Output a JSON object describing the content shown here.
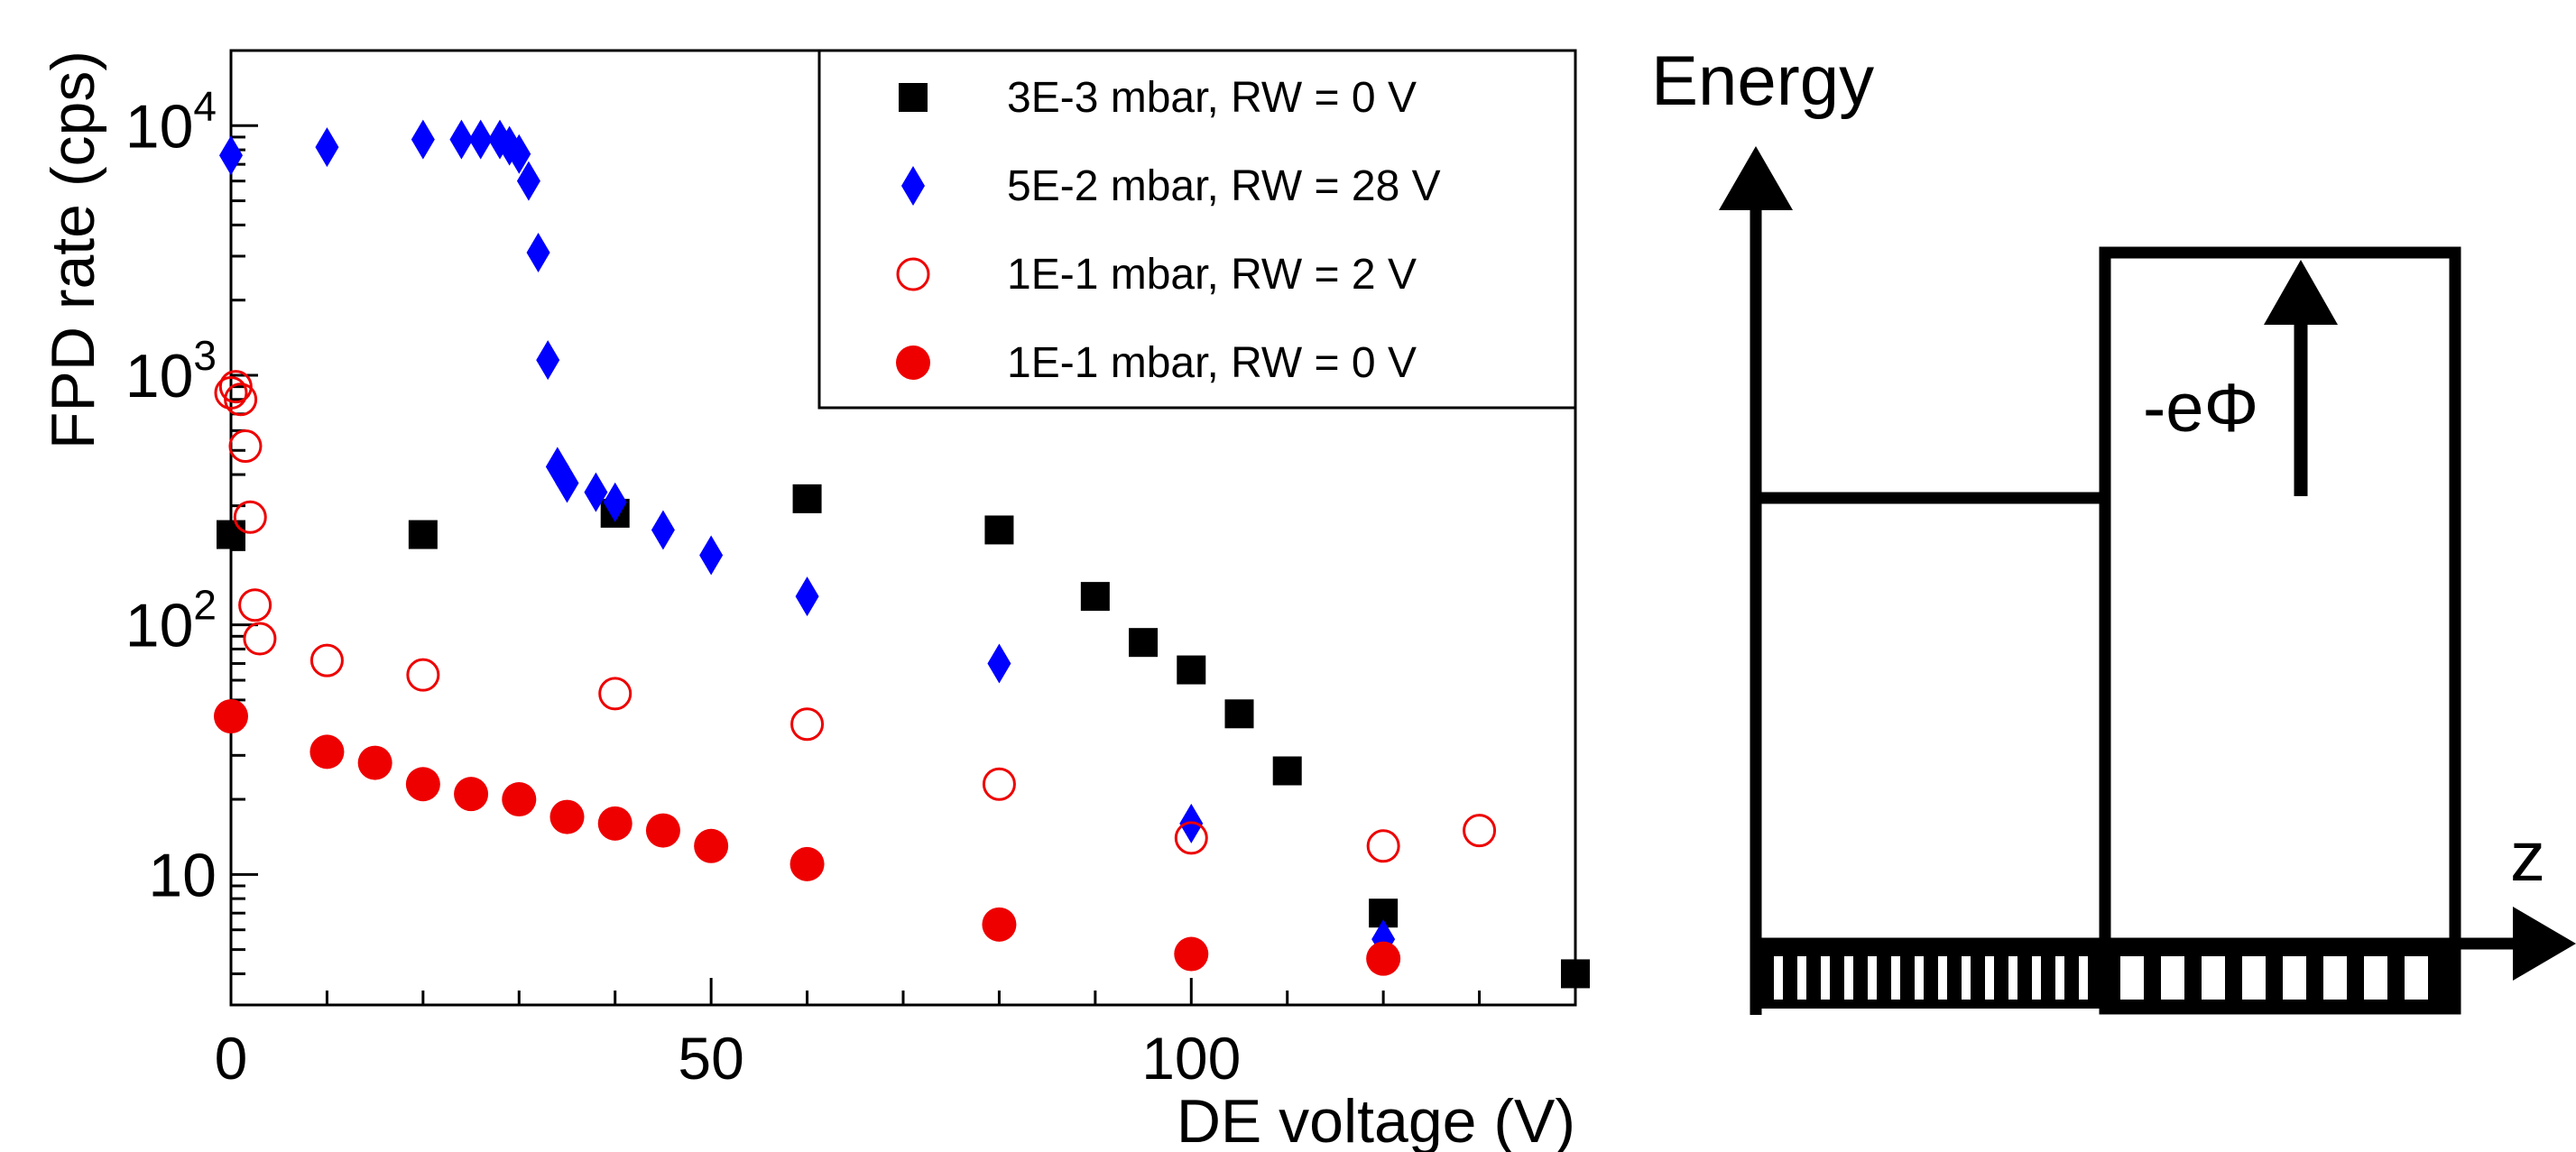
{
  "chart_data": {
    "type": "scatter",
    "xlabel": "DE voltage (V)",
    "ylabel": "FPD rate (cps)",
    "xlim": [
      0,
      140
    ],
    "ylim": [
      3,
      20000
    ],
    "y_scale": "log",
    "grid": false,
    "legend_position": "top-right",
    "x_ticks": [
      {
        "value": 0,
        "label": "0"
      },
      {
        "value": 50,
        "label": "50"
      },
      {
        "value": 100,
        "label": "100"
      }
    ],
    "y_ticks": [
      {
        "value": 10,
        "base": "10",
        "exp": ""
      },
      {
        "value": 100,
        "base": "10",
        "exp": "2"
      },
      {
        "value": 1000,
        "base": "10",
        "exp": "3"
      },
      {
        "value": 10000,
        "base": "10",
        "exp": "4"
      }
    ],
    "series": [
      {
        "name": "3E-3 mbar, RW = 0 V",
        "marker": "square",
        "color": "#000000",
        "filled": true,
        "points": [
          [
            0,
            230
          ],
          [
            20,
            230
          ],
          [
            40,
            280
          ],
          [
            60,
            320
          ],
          [
            80,
            240
          ],
          [
            90,
            130
          ],
          [
            95,
            85
          ],
          [
            100,
            66
          ],
          [
            105,
            44
          ],
          [
            110,
            26
          ],
          [
            120,
            7
          ],
          [
            140,
            4
          ]
        ]
      },
      {
        "name": "5E-2 mbar, RW = 28 V",
        "marker": "diamond",
        "color": "#0000ff",
        "filled": true,
        "points": [
          [
            0,
            7600
          ],
          [
            10,
            8200
          ],
          [
            20,
            8800
          ],
          [
            24,
            8800
          ],
          [
            26,
            8800
          ],
          [
            28,
            8800
          ],
          [
            29,
            8300
          ],
          [
            30,
            7700
          ],
          [
            31,
            6000
          ],
          [
            32,
            3100
          ],
          [
            33,
            1150
          ],
          [
            34,
            430
          ],
          [
            35,
            370
          ],
          [
            38,
            340
          ],
          [
            40,
            310
          ],
          [
            45,
            240
          ],
          [
            50,
            190
          ],
          [
            60,
            130
          ],
          [
            80,
            70
          ],
          [
            100,
            16
          ],
          [
            120,
            5.5
          ]
        ]
      },
      {
        "name": "1E-1 mbar, RW = 2 V",
        "marker": "circle",
        "color": "#ee0000",
        "filled": false,
        "points": [
          [
            0,
            850
          ],
          [
            0.5,
            900
          ],
          [
            1,
            800
          ],
          [
            1.5,
            520
          ],
          [
            2,
            270
          ],
          [
            2.5,
            120
          ],
          [
            3,
            88
          ],
          [
            10,
            72
          ],
          [
            20,
            63
          ],
          [
            40,
            53
          ],
          [
            60,
            40
          ],
          [
            80,
            23
          ],
          [
            100,
            14
          ],
          [
            120,
            13
          ],
          [
            130,
            15
          ]
        ]
      },
      {
        "name": "1E-1 mbar, RW = 0 V",
        "marker": "circle",
        "color": "#ee0000",
        "filled": true,
        "points": [
          [
            0,
            43
          ],
          [
            10,
            31
          ],
          [
            15,
            28
          ],
          [
            20,
            23
          ],
          [
            25,
            21
          ],
          [
            30,
            20
          ],
          [
            35,
            17
          ],
          [
            40,
            16
          ],
          [
            45,
            15
          ],
          [
            50,
            13
          ],
          [
            60,
            11
          ],
          [
            80,
            6.3
          ],
          [
            100,
            4.8
          ],
          [
            120,
            4.6
          ]
        ]
      }
    ]
  },
  "diagram": {
    "energy_label": "Energy",
    "z_label": "z",
    "phi_label": "-eΦ"
  }
}
